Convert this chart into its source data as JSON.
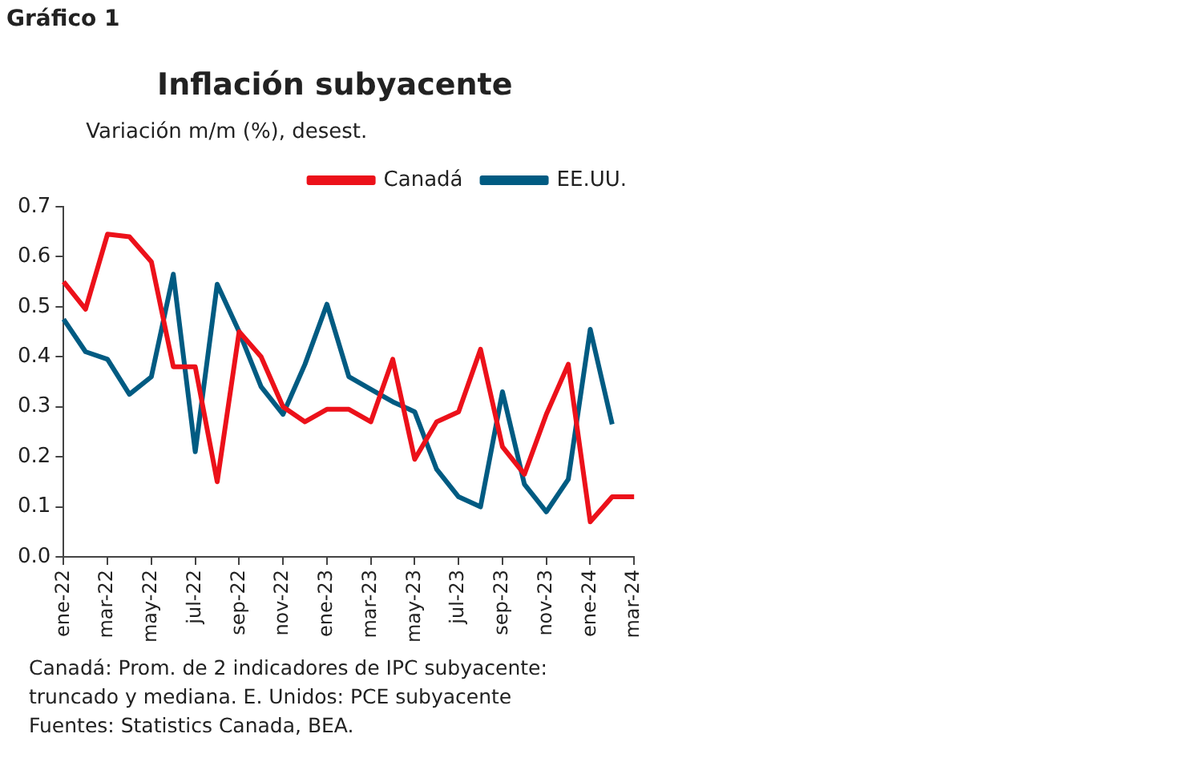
{
  "chart_data": {
    "type": "line",
    "title": "Inflación subyacente",
    "ylabel": "Variación m/m (%), desest.",
    "categories": [
      "ene-22",
      null,
      "mar-22",
      null,
      "may-22",
      null,
      "jul-22",
      null,
      "sep-22",
      null,
      "nov-22",
      null,
      "ene-23",
      null,
      "mar-23",
      null,
      "may-23",
      null,
      "jul-23",
      null,
      "sep-23",
      null,
      "nov-23",
      null,
      "ene-24",
      null,
      "mar-24"
    ],
    "series": [
      {
        "name": "Canadá",
        "color": "#ec111a",
        "values": [
          0.55,
          0.495,
          0.645,
          0.64,
          0.59,
          0.38,
          0.38,
          0.15,
          0.45,
          0.4,
          0.3,
          0.27,
          0.295,
          0.295,
          0.27,
          0.395,
          0.195,
          0.27,
          0.29,
          0.415,
          0.22,
          0.165,
          0.285,
          0.385,
          0.07,
          0.12,
          0.12
        ]
      },
      {
        "name": "EE.UU.",
        "color": "#005b82",
        "values": [
          0.475,
          0.41,
          0.395,
          0.325,
          0.36,
          0.565,
          0.21,
          0.545,
          0.45,
          0.34,
          0.285,
          0.385,
          0.505,
          0.36,
          0.335,
          0.31,
          0.29,
          0.175,
          0.12,
          0.1,
          0.33,
          0.145,
          0.09,
          0.155,
          0.455,
          0.265,
          null
        ]
      }
    ],
    "ylim": [
      0,
      0.7
    ],
    "yticks": [
      {
        "value": 0,
        "label": "0.0"
      },
      {
        "value": 0.1,
        "label": "0.1"
      },
      {
        "value": 0.2,
        "label": "0.2"
      },
      {
        "value": 0.3,
        "label": "0.3"
      },
      {
        "value": 0.4,
        "label": "0.4"
      },
      {
        "value": 0.5,
        "label": "0.5"
      },
      {
        "value": 0.6,
        "label": "0.6"
      },
      {
        "value": 0.7,
        "label": "0.7"
      }
    ],
    "grid": false,
    "legend": "top right",
    "marker": "none",
    "line_style": "solid",
    "annotations": [
      "Gráfico 1",
      "Canadá: Prom. de 2 indicadores de IPC subyacente:",
      "truncado y mediana. E. Unidos: PCE subyacente",
      "Fuentes: Statistics Canada, BEA."
    ]
  }
}
